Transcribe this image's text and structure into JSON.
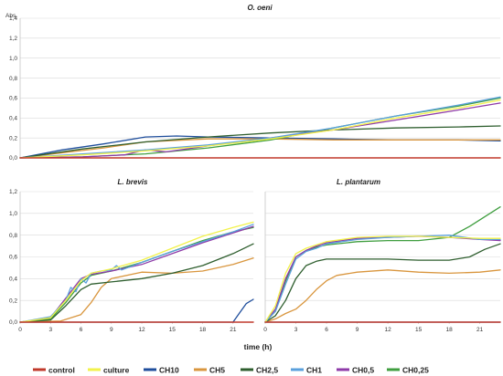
{
  "series_colors": {
    "control": "#c0392b",
    "culture": "#f2f24a",
    "CH10": "#1f4e9c",
    "CH5": "#d9963e",
    "CH2,5": "#2e5e2e",
    "CH1": "#5aa0dc",
    "CH0,5": "#8e3aa8",
    "CH0,25": "#3f9e3f"
  },
  "legend": [
    "control",
    "culture",
    "CH10",
    "CH5",
    "CH2,5",
    "CH1",
    "CH0,5",
    "CH0,25"
  ],
  "chart_data": [
    {
      "type": "line",
      "title": "O. oeni",
      "ylabel": "Abs.",
      "xlabel": "",
      "ylim": [
        0,
        1.4
      ],
      "yticks": [
        "0,0",
        "0,2",
        "0,4",
        "0,6",
        "0,8",
        "1,0",
        "1,2",
        "1,4"
      ],
      "xlim": [
        0,
        23
      ],
      "xticks": [],
      "grid": true,
      "series": [
        {
          "name": "control",
          "x": [
            0,
            23
          ],
          "y": [
            0,
            0
          ]
        },
        {
          "name": "CH10",
          "x": [
            0,
            2,
            4,
            6,
            7.5,
            9,
            12,
            15,
            18,
            21,
            23
          ],
          "y": [
            0,
            0.08,
            0.14,
            0.21,
            0.22,
            0.21,
            0.2,
            0.19,
            0.18,
            0.18,
            0.17
          ]
        },
        {
          "name": "CH5",
          "x": [
            0,
            2,
            4,
            6,
            9,
            12,
            15,
            18,
            21,
            23
          ],
          "y": [
            0,
            0.05,
            0.1,
            0.16,
            0.19,
            0.19,
            0.18,
            0.18,
            0.18,
            0.18
          ]
        },
        {
          "name": "CH2,5",
          "x": [
            0,
            3,
            6,
            9,
            12,
            15,
            18,
            21,
            23
          ],
          "y": [
            0,
            0.09,
            0.16,
            0.21,
            0.25,
            0.28,
            0.3,
            0.31,
            0.32
          ]
        },
        {
          "name": "CH1",
          "x": [
            0,
            3,
            6,
            9,
            12,
            15,
            18,
            21,
            23
          ],
          "y": [
            0,
            0.04,
            0.08,
            0.13,
            0.2,
            0.3,
            0.42,
            0.53,
            0.61
          ]
        },
        {
          "name": "CH0,5",
          "x": [
            0,
            3,
            5,
            6,
            7,
            9,
            12,
            15,
            18,
            21,
            23
          ],
          "y": [
            0,
            0.01,
            0.03,
            0.08,
            0.06,
            0.12,
            0.2,
            0.28,
            0.38,
            0.48,
            0.55
          ]
        },
        {
          "name": "CH0,25",
          "x": [
            0,
            3,
            6,
            9,
            12,
            15,
            18,
            21,
            23
          ],
          "y": [
            0,
            0.01,
            0.04,
            0.1,
            0.18,
            0.3,
            0.42,
            0.52,
            0.6
          ]
        },
        {
          "name": "culture",
          "x": [
            0,
            3,
            6,
            9,
            12,
            15,
            18,
            21,
            23
          ],
          "y": [
            0,
            0.03,
            0.07,
            0.12,
            0.19,
            0.28,
            0.4,
            0.5,
            0.58
          ]
        }
      ]
    },
    {
      "type": "line",
      "title": "L. brevis",
      "ylabel": "",
      "xlabel": "",
      "ylim": [
        0,
        1.2
      ],
      "yticks": [
        "0,0",
        "0,2",
        "0,4",
        "0,6",
        "0,8",
        "1,0",
        "1,2"
      ],
      "xlim": [
        0,
        23
      ],
      "xticks": [
        "0",
        "3",
        "6",
        "9",
        "12",
        "15",
        "18",
        "21"
      ],
      "grid": true,
      "series": [
        {
          "name": "control",
          "x": [
            0,
            23
          ],
          "y": [
            0,
            0
          ]
        },
        {
          "name": "CH10",
          "x": [
            0,
            21,
            21.6,
            22.3,
            23
          ],
          "y": [
            0,
            0,
            0.08,
            0.17,
            0.21
          ]
        },
        {
          "name": "CH5",
          "x": [
            0,
            4,
            6,
            7,
            8,
            9,
            12,
            15,
            18,
            21,
            23
          ],
          "y": [
            0,
            0.01,
            0.07,
            0.18,
            0.32,
            0.4,
            0.46,
            0.45,
            0.47,
            0.53,
            0.59
          ]
        },
        {
          "name": "CH2,5",
          "x": [
            0,
            3,
            4.5,
            6,
            7,
            9,
            12,
            15,
            18,
            21,
            23
          ],
          "y": [
            0,
            0.02,
            0.15,
            0.3,
            0.35,
            0.37,
            0.4,
            0.45,
            0.52,
            0.63,
            0.72
          ]
        },
        {
          "name": "CH1",
          "x": [
            0,
            3,
            4.5,
            5,
            5.5,
            6,
            6.5,
            7,
            8,
            9,
            9.5,
            10,
            12,
            15,
            18,
            21,
            23
          ],
          "y": [
            0,
            0.05,
            0.2,
            0.32,
            0.28,
            0.4,
            0.36,
            0.45,
            0.47,
            0.48,
            0.52,
            0.48,
            0.55,
            0.65,
            0.74,
            0.83,
            0.9
          ]
        },
        {
          "name": "CH0,5",
          "x": [
            0,
            3,
            4.5,
            6,
            7,
            9,
            12,
            15,
            18,
            21,
            23
          ],
          "y": [
            0,
            0.04,
            0.22,
            0.4,
            0.44,
            0.47,
            0.53,
            0.63,
            0.73,
            0.82,
            0.88
          ]
        },
        {
          "name": "CH0,25",
          "x": [
            0,
            3,
            4.5,
            6,
            7,
            9,
            12,
            15,
            18,
            21,
            23
          ],
          "y": [
            0,
            0.03,
            0.18,
            0.36,
            0.43,
            0.47,
            0.55,
            0.65,
            0.75,
            0.83,
            0.87
          ]
        },
        {
          "name": "culture",
          "x": [
            0,
            3,
            4.5,
            6,
            7,
            9,
            12,
            15,
            18,
            21,
            23
          ],
          "y": [
            0,
            0.04,
            0.2,
            0.38,
            0.45,
            0.49,
            0.57,
            0.68,
            0.79,
            0.87,
            0.92
          ]
        }
      ]
    },
    {
      "type": "line",
      "title": "L. plantarum",
      "ylabel": "",
      "xlabel": "time (h)",
      "ylim": [
        0,
        1.2
      ],
      "yticks": [],
      "xlim": [
        0,
        23
      ],
      "xticks": [
        "0",
        "3",
        "6",
        "9",
        "12",
        "15",
        "18",
        "21"
      ],
      "grid": true,
      "series": [
        {
          "name": "control",
          "x": [
            0,
            23
          ],
          "y": [
            0,
            0
          ]
        },
        {
          "name": "CH10",
          "x": [
            0,
            23
          ],
          "y": [
            0,
            0
          ]
        },
        {
          "name": "CH5",
          "x": [
            0,
            1,
            2,
            3,
            4,
            5,
            6,
            7,
            9,
            12,
            15,
            18,
            21,
            23
          ],
          "y": [
            0,
            0.03,
            0.08,
            0.12,
            0.2,
            0.3,
            0.38,
            0.43,
            0.46,
            0.48,
            0.46,
            0.45,
            0.46,
            0.48
          ]
        },
        {
          "name": "CH2,5",
          "x": [
            0,
            1,
            2,
            3,
            4,
            5,
            6,
            9,
            12,
            15,
            18,
            20,
            21.5,
            23
          ],
          "y": [
            0,
            0.06,
            0.2,
            0.4,
            0.52,
            0.56,
            0.58,
            0.58,
            0.58,
            0.57,
            0.57,
            0.6,
            0.67,
            0.72
          ]
        },
        {
          "name": "CH1",
          "x": [
            0,
            1,
            2,
            3,
            4,
            5,
            6,
            9,
            12,
            15,
            18,
            21,
            23
          ],
          "y": [
            0,
            0.1,
            0.35,
            0.58,
            0.65,
            0.68,
            0.72,
            0.76,
            0.78,
            0.79,
            0.8,
            0.76,
            0.76
          ]
        },
        {
          "name": "CH0,5",
          "x": [
            0,
            1,
            2,
            3,
            4,
            5,
            6,
            9,
            12,
            15,
            18,
            21,
            23
          ],
          "y": [
            0,
            0.12,
            0.4,
            0.6,
            0.66,
            0.7,
            0.73,
            0.77,
            0.78,
            0.79,
            0.78,
            0.76,
            0.75
          ]
        },
        {
          "name": "CH0,25",
          "x": [
            0,
            1,
            2,
            3,
            4,
            5,
            6,
            9,
            12,
            15,
            18,
            20,
            22,
            23
          ],
          "y": [
            0,
            0.1,
            0.38,
            0.6,
            0.66,
            0.69,
            0.71,
            0.74,
            0.75,
            0.75,
            0.78,
            0.88,
            1.0,
            1.06
          ]
        },
        {
          "name": "culture",
          "x": [
            0,
            1,
            2,
            3,
            4,
            5,
            6,
            9,
            12,
            15,
            18,
            21,
            23
          ],
          "y": [
            0,
            0.15,
            0.45,
            0.63,
            0.68,
            0.71,
            0.74,
            0.78,
            0.79,
            0.79,
            0.78,
            0.77,
            0.77
          ]
        }
      ]
    }
  ]
}
